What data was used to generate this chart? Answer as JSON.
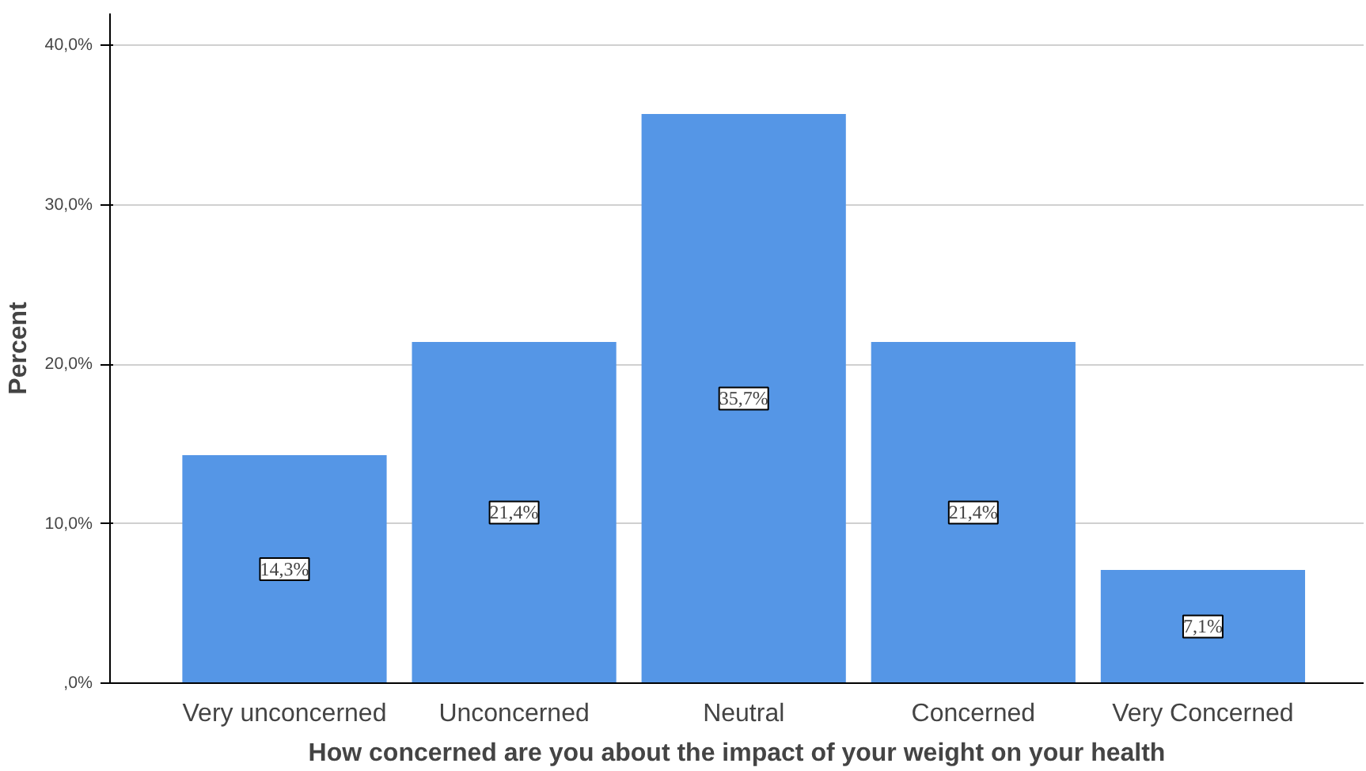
{
  "chart_data": {
    "type": "bar",
    "xlabel": "How concerned are you about the impact of your weight on your health",
    "ylabel": "Percent",
    "categories": [
      "Very unconcerned",
      "Unconcerned",
      "Neutral",
      "Concerned",
      "Very Concerned"
    ],
    "values": [
      14.3,
      21.4,
      35.7,
      21.4,
      7.1
    ],
    "value_labels": [
      "14,3%",
      "21,4%",
      "35,7%",
      "21,4%",
      "7,1%"
    ],
    "color": "#5596e6",
    "ylim": [
      0,
      42
    ],
    "yticks": [
      {
        "value": 0,
        "label": ",0%"
      },
      {
        "value": 10,
        "label": "10,0%"
      },
      {
        "value": 20,
        "label": "20,0%"
      },
      {
        "value": 30,
        "label": "30,0%"
      },
      {
        "value": 40,
        "label": "40,0%"
      }
    ],
    "grid": "y"
  }
}
